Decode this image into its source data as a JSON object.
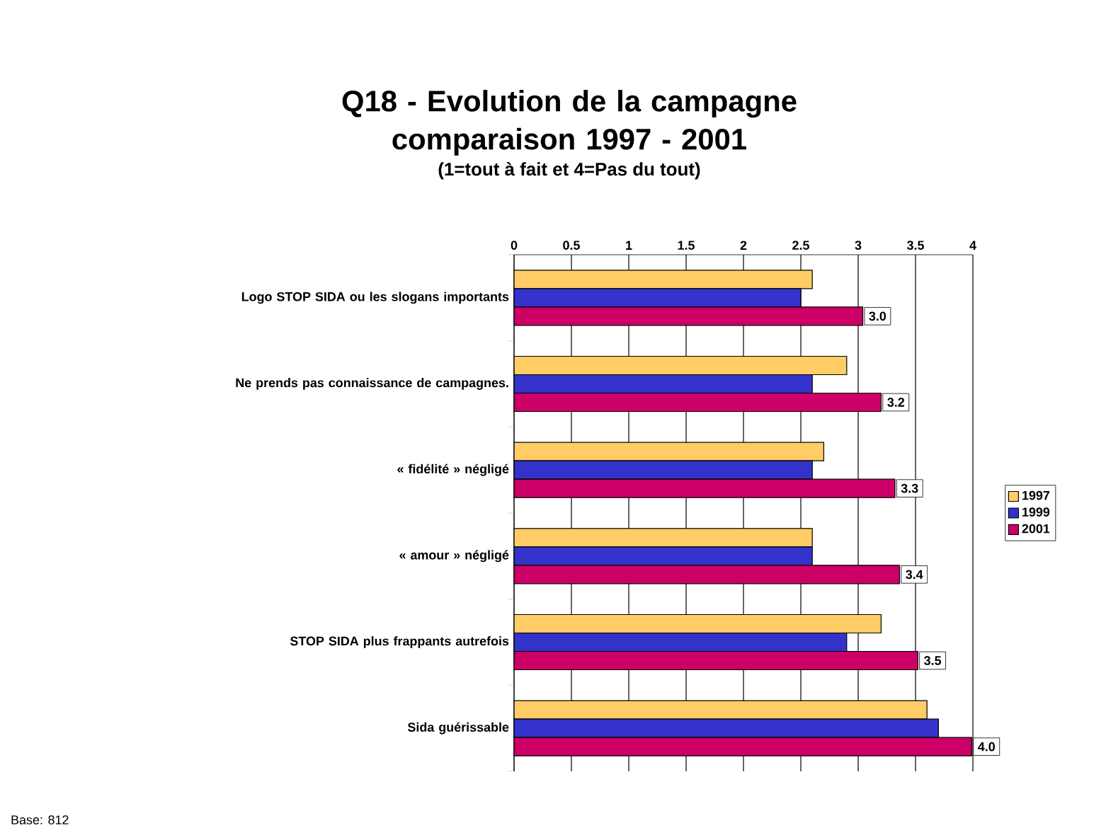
{
  "chart_data": {
    "type": "bar",
    "orientation": "horizontal",
    "title": "Q18 - Evolution de la campagne comparaison 1997 - 2001",
    "subtitle": "(1=tout à fait et 4=Pas du tout)",
    "categories": [
      "Logo STOP SIDA ou les slogans importants",
      "Ne prends pas connaissance de campagnes.",
      "« fidélité » négligé",
      "« amour » négligé",
      "STOP SIDA plus frappants autrefois",
      "Sida guérissable"
    ],
    "series": [
      {
        "name": "1997",
        "color": "#ffcc66",
        "values": [
          2.6,
          2.9,
          2.7,
          2.6,
          3.2,
          3.6
        ]
      },
      {
        "name": "1999",
        "color": "#3333cc",
        "values": [
          2.5,
          2.6,
          2.6,
          2.6,
          2.9,
          3.7
        ]
      },
      {
        "name": "2001",
        "color": "#cc0066",
        "values": [
          3.04,
          3.2,
          3.32,
          3.36,
          3.52,
          3.99
        ],
        "value_labels": [
          "3.0",
          "3.2",
          "3.3",
          "3.4",
          "3.5",
          "4.0"
        ]
      }
    ],
    "xlim": [
      0,
      4
    ],
    "xticks": [
      0,
      0.5,
      1,
      1.5,
      2,
      2.5,
      3,
      3.5,
      4
    ],
    "grid": "x",
    "legend": "right",
    "annotations": [
      "Base: 812"
    ]
  }
}
